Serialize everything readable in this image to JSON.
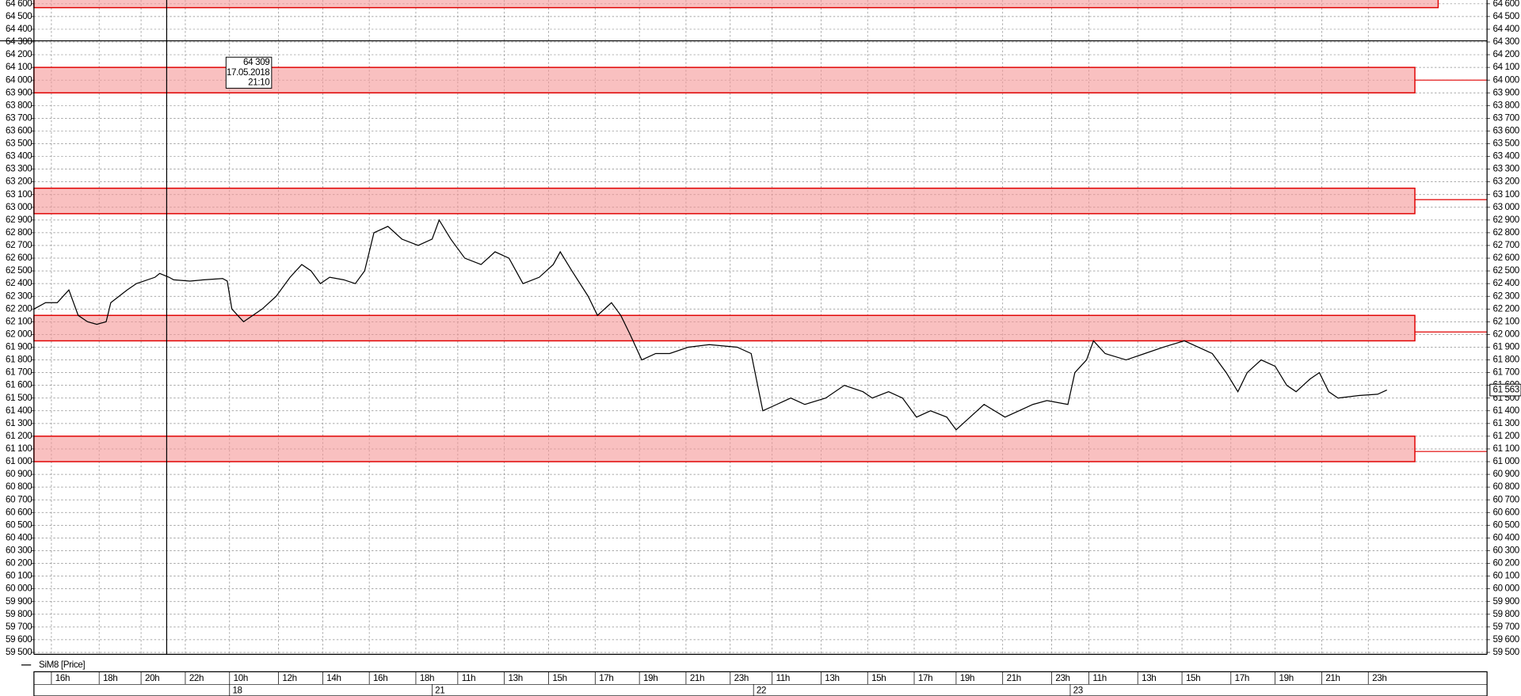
{
  "chart_data": {
    "type": "line",
    "grid": true,
    "xlim": [
      0,
      62.4
    ],
    "ylim": [
      59485,
      64630
    ],
    "x": [
      0,
      0.5,
      1.0,
      1.5,
      1.9,
      2.3,
      2.7,
      3.1,
      3.3,
      4.0,
      4.4,
      5.2,
      5.4,
      5.8,
      6.0,
      6.7,
      7.3,
      8.1,
      8.3,
      8.5,
      9.0,
      9.8,
      10.4,
      11.0,
      11.5,
      11.9,
      12.3,
      12.7,
      13.3,
      13.8,
      14.2,
      14.6,
      15.2,
      15.8,
      16.5,
      17.1,
      17.4,
      17.9,
      18.5,
      19.2,
      19.8,
      20.4,
      21.0,
      21.7,
      22.3,
      22.6,
      23.1,
      23.8,
      24.2,
      24.8,
      25.2,
      25.6,
      26.1,
      26.7,
      27.3,
      28.1,
      29.0,
      30.2,
      30.8,
      31.3,
      31.9,
      32.5,
      33.1,
      34.0,
      34.8,
      35.6,
      36.0,
      36.7,
      37.3,
      37.9,
      38.5,
      39.2,
      39.6,
      40.2,
      40.8,
      41.7,
      42.3,
      42.9,
      43.5,
      44.4,
      44.7,
      45.2,
      45.5,
      46.0,
      46.9,
      47.7,
      48.5,
      49.4,
      50.0,
      50.6,
      51.2,
      51.7,
      52.1,
      52.7,
      53.3,
      53.8,
      54.2,
      54.8,
      55.2,
      55.6,
      56.0,
      56.9,
      57.7,
      58.1
    ],
    "series": [
      {
        "name": "SiM8 [Price]",
        "color": "#000000",
        "values": [
          62200,
          62250,
          62250,
          62350,
          62150,
          62100,
          62080,
          62100,
          62250,
          62350,
          62400,
          62450,
          62480,
          62450,
          62430,
          62420,
          62430,
          62440,
          62420,
          62200,
          62100,
          62200,
          62300,
          62450,
          62550,
          62500,
          62400,
          62450,
          62430,
          62400,
          62500,
          62800,
          62850,
          62750,
          62700,
          62750,
          62900,
          62750,
          62600,
          62550,
          62650,
          62600,
          62400,
          62450,
          62550,
          62650,
          62500,
          62300,
          62150,
          62250,
          62150,
          62000,
          61800,
          61850,
          61850,
          61900,
          61920,
          61900,
          61850,
          61400,
          61450,
          61500,
          61450,
          61500,
          61600,
          61550,
          61500,
          61550,
          61500,
          61350,
          61400,
          61350,
          61250,
          61350,
          61450,
          61350,
          61400,
          61450,
          61480,
          61450,
          61700,
          61800,
          61950,
          61850,
          61800,
          61850,
          61900,
          61950,
          61900,
          61850,
          61700,
          61550,
          61700,
          61800,
          61750,
          61600,
          61550,
          61650,
          61700,
          61550,
          61500,
          61520,
          61530,
          61563
        ]
      }
    ],
    "last_price": {
      "value": 61563,
      "label": "61 563"
    },
    "zones": [
      {
        "low": 64570,
        "high": 64650,
        "end": 60.3
      },
      {
        "low": 63900,
        "high": 64100,
        "end": 59.3,
        "level": 64000
      },
      {
        "low": 62950,
        "high": 63150,
        "end": 59.3,
        "level": 63060
      },
      {
        "low": 61950,
        "high": 62150,
        "end": 59.3,
        "level": 62020
      },
      {
        "low": 61000,
        "high": 61200,
        "end": 59.3,
        "level": 61080
      }
    ],
    "crosshair": {
      "x": 5.7,
      "y": 64309,
      "price_label": "64 309",
      "date_label": "17.05.2018",
      "time_label": "21:10"
    },
    "xticks": [
      {
        "value": 0.75,
        "label": "16h"
      },
      {
        "value": 2.8,
        "label": "18h"
      },
      {
        "value": 4.6,
        "label": "20h"
      },
      {
        "value": 6.5,
        "label": "22h"
      },
      {
        "value": 8.4,
        "label": "10h"
      },
      {
        "value": 10.5,
        "label": "12h"
      },
      {
        "value": 12.4,
        "label": "14h"
      },
      {
        "value": 14.4,
        "label": "16h"
      },
      {
        "value": 16.4,
        "label": "18h"
      },
      {
        "value": 18.2,
        "label": "11h"
      },
      {
        "value": 20.2,
        "label": "13h"
      },
      {
        "value": 22.1,
        "label": "15h"
      },
      {
        "value": 24.1,
        "label": "17h"
      },
      {
        "value": 26.0,
        "label": "19h"
      },
      {
        "value": 28.0,
        "label": "21h"
      },
      {
        "value": 29.9,
        "label": "23h"
      },
      {
        "value": 31.7,
        "label": "11h"
      },
      {
        "value": 33.8,
        "label": "13h"
      },
      {
        "value": 35.8,
        "label": "15h"
      },
      {
        "value": 37.8,
        "label": "17h"
      },
      {
        "value": 39.6,
        "label": "19h"
      },
      {
        "value": 41.6,
        "label": "21h"
      },
      {
        "value": 43.7,
        "label": "23h"
      },
      {
        "value": 45.3,
        "label": "11h"
      },
      {
        "value": 47.4,
        "label": "13h"
      },
      {
        "value": 49.3,
        "label": "15h"
      },
      {
        "value": 51.4,
        "label": "17h"
      },
      {
        "value": 53.3,
        "label": "19h"
      },
      {
        "value": 55.3,
        "label": "21h"
      },
      {
        "value": 57.3,
        "label": "23h"
      }
    ],
    "date_ticks": [
      {
        "value": 8.4,
        "label": "18"
      },
      {
        "value": 17.1,
        "label": "21"
      },
      {
        "value": 30.9,
        "label": "22"
      },
      {
        "value": 44.5,
        "label": "23"
      }
    ],
    "yticks": [
      {
        "value": 59500,
        "label": "59 500"
      },
      {
        "value": 59600,
        "label": "59 600"
      },
      {
        "value": 59700,
        "label": "59 700"
      },
      {
        "value": 59800,
        "label": "59 800"
      },
      {
        "value": 59900,
        "label": "59 900"
      },
      {
        "value": 60000,
        "label": "60 000"
      },
      {
        "value": 60100,
        "label": "60 100"
      },
      {
        "value": 60200,
        "label": "60 200"
      },
      {
        "value": 60300,
        "label": "60 300"
      },
      {
        "value": 60400,
        "label": "60 400"
      },
      {
        "value": 60500,
        "label": "60 500"
      },
      {
        "value": 60600,
        "label": "60 600"
      },
      {
        "value": 60700,
        "label": "60 700"
      },
      {
        "value": 60800,
        "label": "60 800"
      },
      {
        "value": 60900,
        "label": "60 900"
      },
      {
        "value": 61000,
        "label": "61 000"
      },
      {
        "value": 61100,
        "label": "61 100"
      },
      {
        "value": 61200,
        "label": "61 200"
      },
      {
        "value": 61300,
        "label": "61 300"
      },
      {
        "value": 61400,
        "label": "61 400"
      },
      {
        "value": 61500,
        "label": "61 500"
      },
      {
        "value": 61600,
        "label": "61 600"
      },
      {
        "value": 61700,
        "label": "61 700"
      },
      {
        "value": 61800,
        "label": "61 800"
      },
      {
        "value": 61900,
        "label": "61 900"
      },
      {
        "value": 62000,
        "label": "62 000"
      },
      {
        "value": 62100,
        "label": "62 100"
      },
      {
        "value": 62200,
        "label": "62 200"
      },
      {
        "value": 62300,
        "label": "62 300"
      },
      {
        "value": 62400,
        "label": "62 400"
      },
      {
        "value": 62500,
        "label": "62 500"
      },
      {
        "value": 62600,
        "label": "62 600"
      },
      {
        "value": 62700,
        "label": "62 700"
      },
      {
        "value": 62800,
        "label": "62 800"
      },
      {
        "value": 62900,
        "label": "62 900"
      },
      {
        "value": 63000,
        "label": "63 000"
      },
      {
        "value": 63100,
        "label": "63 100"
      },
      {
        "value": 63200,
        "label": "63 200"
      },
      {
        "value": 63300,
        "label": "63 300"
      },
      {
        "value": 63400,
        "label": "63 400"
      },
      {
        "value": 63500,
        "label": "63 500"
      },
      {
        "value": 63600,
        "label": "63 600"
      },
      {
        "value": 63700,
        "label": "63 700"
      },
      {
        "value": 63800,
        "label": "63 800"
      },
      {
        "value": 63900,
        "label": "63 900"
      },
      {
        "value": 64000,
        "label": "64 000"
      },
      {
        "value": 64100,
        "label": "64 100"
      },
      {
        "value": 64200,
        "label": "64 200"
      },
      {
        "value": 64300,
        "label": "64 300"
      },
      {
        "value": 64400,
        "label": "64 400"
      },
      {
        "value": 64500,
        "label": "64 500"
      },
      {
        "value": 64600,
        "label": "64 600"
      }
    ]
  }
}
